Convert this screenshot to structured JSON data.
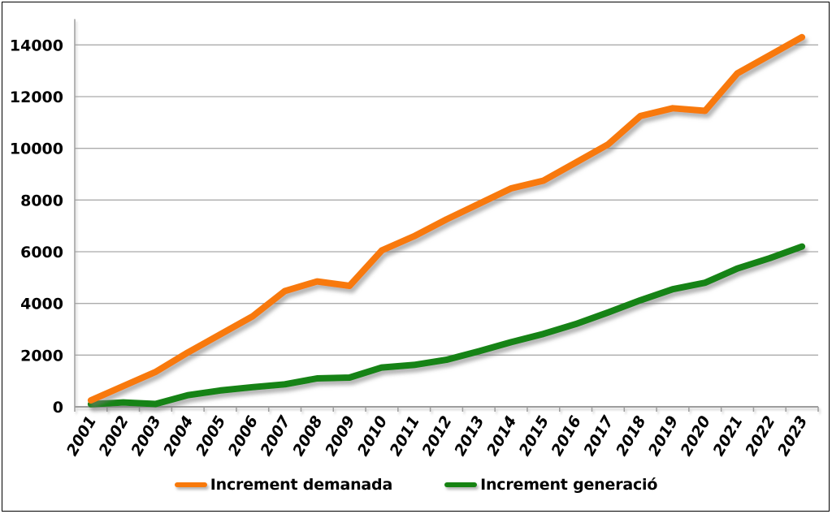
{
  "chart_data": {
    "type": "line",
    "title": "",
    "xlabel": "",
    "ylabel": "",
    "categories": [
      "2001",
      "2002",
      "2003",
      "2004",
      "2005",
      "2006",
      "2007",
      "2008",
      "2009",
      "2010",
      "2011",
      "2012",
      "2013",
      "2014",
      "2015",
      "2016",
      "2017",
      "2018",
      "2019",
      "2020",
      "2021",
      "2022",
      "2023"
    ],
    "series": [
      {
        "name": "Increment demanada",
        "color": "#F8790B",
        "values": [
          250,
          800,
          1350,
          2100,
          2800,
          3500,
          4480,
          4850,
          4680,
          6050,
          6600,
          7250,
          7850,
          8450,
          8750,
          9450,
          10150,
          11250,
          11550,
          11450,
          12900,
          13600,
          14300
        ]
      },
      {
        "name": "Increment generació",
        "color": "#168312",
        "values": [
          100,
          170,
          110,
          450,
          630,
          760,
          870,
          1100,
          1130,
          1520,
          1620,
          1820,
          2150,
          2500,
          2820,
          3200,
          3650,
          4120,
          4550,
          4800,
          5350,
          5750,
          6200
        ]
      }
    ],
    "ylim": [
      0,
      15000
    ],
    "ytick_step": 2000,
    "yticks": [
      "0",
      "2000",
      "4000",
      "6000",
      "8000",
      "10000",
      "12000",
      "14000"
    ],
    "grid": true,
    "legend_position": "bottom",
    "axis_color": "#9D9D9D",
    "grid_color": "#ABABAB",
    "text_color": "#000000"
  }
}
